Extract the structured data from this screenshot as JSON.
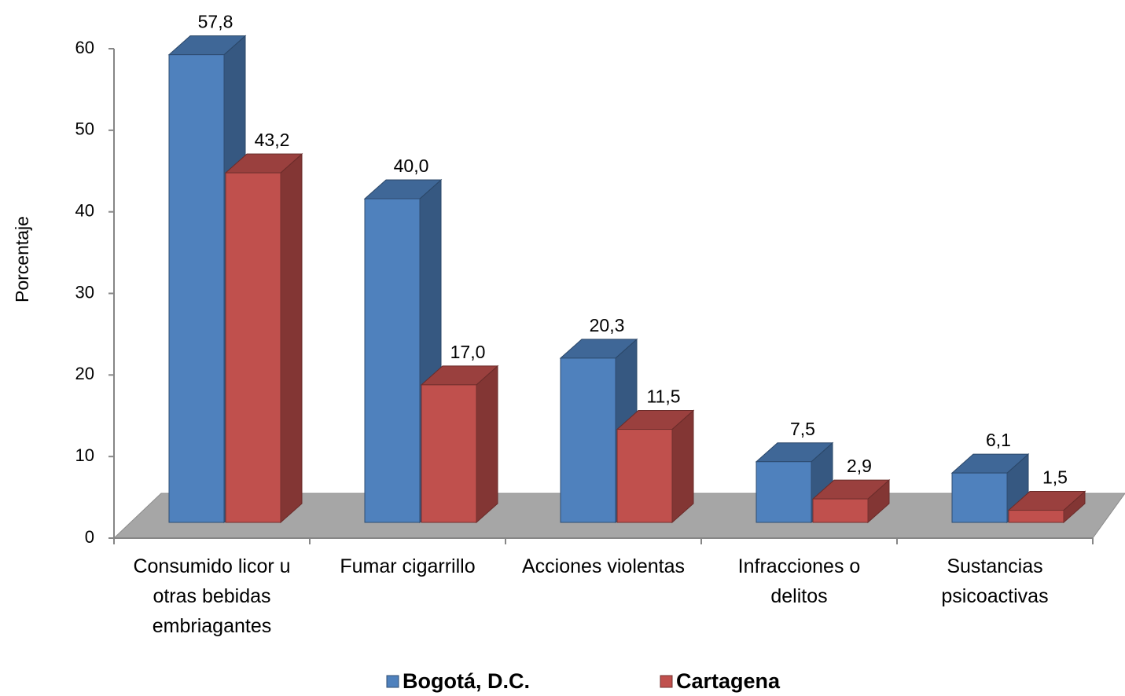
{
  "chart_data": {
    "type": "bar3d",
    "categories": [
      "Consumido licor u otras bebidas embriagantes",
      "Fumar cigarrillo",
      "Acciones violentas",
      "Infracciones o delitos",
      "Sustancias psicoactivas"
    ],
    "series": [
      {
        "name": "Bogotá, D.C.",
        "color": "#4f81bd",
        "values": [
          57.8,
          40.0,
          20.3,
          7.5,
          6.1
        ],
        "value_labels": [
          "57,8",
          "40,0",
          "20,3",
          "7,5",
          "6,1"
        ]
      },
      {
        "name": "Cartagena",
        "color": "#c0504d",
        "values": [
          43.2,
          17.0,
          11.5,
          2.9,
          1.5
        ],
        "value_labels": [
          "43,2",
          "17,0",
          "11,5",
          "2,9",
          "1,5"
        ]
      }
    ],
    "y_label": "Porcentaje",
    "ylim": [
      0,
      60
    ],
    "yticks": [
      0,
      10,
      20,
      30,
      40,
      50,
      60
    ]
  }
}
